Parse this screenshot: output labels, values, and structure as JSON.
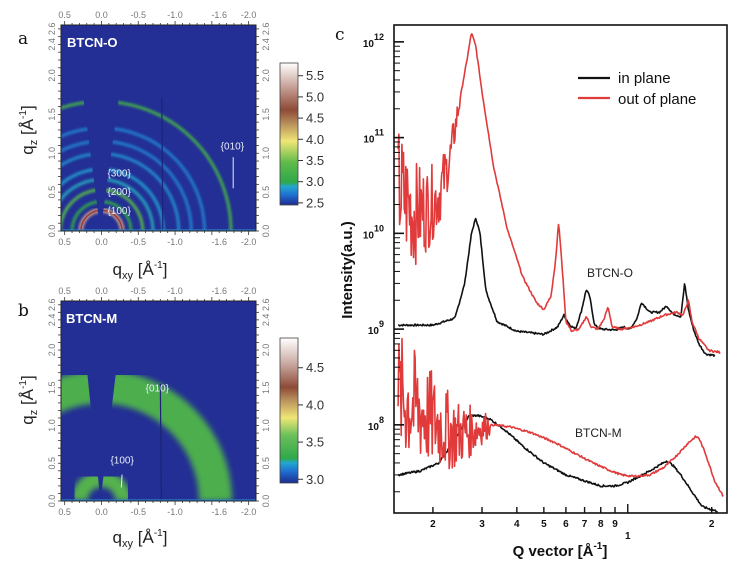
{
  "chart_data": [
    {
      "panel": "a",
      "type": "heatmap",
      "sample_label": "BTCN-O",
      "xlabel": "q_xy [Å^-1]",
      "ylabel": "q_z [Å^-1]",
      "x_ticks": [
        "0.5",
        "0.0",
        "-0.5",
        "-1.0",
        "-1.6",
        "-2.0"
      ],
      "x_tick_values": [
        0.5,
        0.0,
        -0.5,
        -1.0,
        -1.6,
        -2.0
      ],
      "y_ticks": [
        "0.0",
        "0.5",
        "1.0",
        "1.5",
        "2.0",
        "2.4",
        "2.6"
      ],
      "y_tick_values": [
        0.0,
        0.5,
        1.0,
        1.5,
        2.0,
        2.4,
        2.6
      ],
      "xlim": [
        0.55,
        -2.1
      ],
      "ylim": [
        0.0,
        2.65
      ],
      "colorbar": {
        "ticks": [
          "2.5",
          "3.0",
          "3.5",
          "4.0",
          "4.5",
          "5.0",
          "5.5"
        ],
        "range": [
          2.45,
          5.8
        ]
      },
      "reflections": [
        {
          "label": "{100}",
          "q": 0.28
        },
        {
          "label": "{200}",
          "q": 0.56
        },
        {
          "label": "{300}",
          "q": 0.84
        },
        {
          "label": "{010}",
          "q": 1.76
        }
      ],
      "rings": [
        {
          "q": 0.28,
          "intensity": 5.2
        },
        {
          "q": 0.4,
          "intensity": 3.0
        },
        {
          "q": 0.56,
          "intensity": 3.4
        },
        {
          "q": 0.7,
          "intensity": 2.9
        },
        {
          "q": 0.84,
          "intensity": 2.85
        },
        {
          "q": 1.05,
          "intensity": 2.8
        },
        {
          "q": 1.22,
          "intensity": 2.75
        },
        {
          "q": 1.4,
          "intensity": 2.75
        },
        {
          "q": 1.76,
          "intensity": 3.2
        }
      ]
    },
    {
      "panel": "b",
      "type": "heatmap",
      "sample_label": "BTCN-M",
      "xlabel": "q_xy [Å^-1]",
      "ylabel": "q_z [Å^-1]",
      "x_ticks": [
        "0.5",
        "0.0",
        "-0.5",
        "-1.0",
        "-1.6",
        "-2.0"
      ],
      "x_tick_values": [
        0.5,
        0.0,
        -0.5,
        -1.0,
        -1.6,
        -2.0
      ],
      "y_ticks": [
        "0.0",
        "0.5",
        "1.0",
        "1.5",
        "2.0",
        "2.4",
        "2.6"
      ],
      "y_tick_values": [
        0.0,
        0.5,
        1.0,
        1.5,
        2.0,
        2.4,
        2.6
      ],
      "xlim": [
        0.55,
        -2.1
      ],
      "ylim": [
        0.0,
        2.65
      ],
      "colorbar": {
        "ticks": [
          "3.0",
          "3.5",
          "4.0",
          "4.5"
        ],
        "range": [
          2.95,
          4.9
        ]
      },
      "reflections": [
        {
          "label": "{100}",
          "q": 0.3
        },
        {
          "label": "{010}",
          "q": 1.55
        }
      ],
      "rings": [
        {
          "q": 0.3,
          "width": 0.22,
          "intensity": 3.5
        },
        {
          "q": 1.55,
          "width": 0.45,
          "intensity": 3.45
        }
      ]
    },
    {
      "panel": "c",
      "type": "line",
      "xlabel": "Q vector [Å^-1]",
      "ylabel": "Intensity(a.u.)",
      "xscale": "log",
      "yscale": "log",
      "xlim": [
        0.145,
        2.27
      ],
      "ylim": [
        12000000.0,
        1500000000000.0
      ],
      "x_ticks": [
        "2",
        "3",
        "4",
        "5",
        "6",
        "7",
        "8",
        "9",
        "1",
        "2"
      ],
      "x_tick_values": [
        0.2,
        0.3,
        0.4,
        0.5,
        0.6,
        0.7,
        0.8,
        0.9,
        1.0,
        2.0
      ],
      "y_ticks": [
        "10^8",
        "10^9",
        "10^10",
        "10^11",
        "10^12"
      ],
      "y_tick_values": [
        100000000.0,
        1000000000.0,
        10000000000.0,
        100000000000.0,
        1000000000000.0
      ],
      "legend": {
        "position": "top-right",
        "entries": [
          {
            "label": "in plane",
            "color": "#111111"
          },
          {
            "label": "out of plane",
            "color": "#e03a3a"
          }
        ]
      },
      "annotations": [
        {
          "text": "BTCN-O",
          "x": 0.68,
          "y": 4200000000.0
        },
        {
          "text": "BTCN-M",
          "x": 0.66,
          "y": 100000000.0
        }
      ],
      "series": [
        {
          "name": "BTCN-O in plane",
          "color": "#111111",
          "x": [
            0.15,
            0.2,
            0.24,
            0.26,
            0.275,
            0.285,
            0.295,
            0.31,
            0.34,
            0.4,
            0.5,
            0.56,
            0.59,
            0.62,
            0.65,
            0.68,
            0.71,
            0.73,
            0.76,
            0.8,
            0.9,
            0.97,
            1.02,
            1.08,
            1.12,
            1.2,
            1.3,
            1.38,
            1.45,
            1.55,
            1.6,
            1.65,
            1.72,
            1.8,
            1.9,
            2.05
          ],
          "y": [
            1100000000.0,
            1100000000.0,
            1300000000.0,
            3000000000.0,
            10000000000.0,
            14500000000.0,
            10000000000.0,
            2500000000.0,
            1200000000.0,
            950000000.0,
            880000000.0,
            1050000000.0,
            1400000000.0,
            1100000000.0,
            1000000000.0,
            1500000000.0,
            2600000000.0,
            2200000000.0,
            1100000000.0,
            1000000000.0,
            980000000.0,
            1050000000.0,
            1000000000.0,
            1300000000.0,
            1900000000.0,
            1500000000.0,
            1500000000.0,
            1750000000.0,
            1450000000.0,
            1350000000.0,
            3000000000.0,
            1600000000.0,
            1000000000.0,
            700000000.0,
            550000000.0,
            530000000.0
          ]
        },
        {
          "name": "BTCN-O out of plane",
          "color": "#e03a3a",
          "x": [
            0.15,
            0.17,
            0.19,
            0.21,
            0.23,
            0.25,
            0.265,
            0.275,
            0.285,
            0.3,
            0.33,
            0.37,
            0.42,
            0.47,
            0.5,
            0.53,
            0.55,
            0.565,
            0.58,
            0.6,
            0.63,
            0.67,
            0.71,
            0.74,
            0.78,
            0.82,
            0.85,
            0.88,
            0.95,
            1.05,
            1.2,
            1.35,
            1.5,
            1.58,
            1.65,
            1.7,
            1.8,
            1.95,
            2.15
          ],
          "y": [
            30000000000.0,
            16000000000.0,
            18000000000.0,
            25000000000.0,
            60000000000.0,
            250000000000.0,
            650000000000.0,
            1250000000000.0,
            900000000000.0,
            300000000000.0,
            50000000000.0,
            11000000000.0,
            3500000000.0,
            1900000000.0,
            1600000000.0,
            2200000000.0,
            5000000000.0,
            13000000000.0,
            5000000000.0,
            1200000000.0,
            950000000.0,
            1000000000.0,
            1350000000.0,
            1050000000.0,
            1000000000.0,
            1250000000.0,
            1700000000.0,
            1050000000.0,
            1000000000.0,
            1050000000.0,
            1200000000.0,
            1400000000.0,
            1500000000.0,
            1400000000.0,
            2000000000.0,
            1200000000.0,
            800000000.0,
            600000000.0,
            570000000.0
          ]
        },
        {
          "name": "BTCN-M in plane",
          "color": "#111111",
          "x": [
            0.15,
            0.18,
            0.21,
            0.24,
            0.27,
            0.29,
            0.32,
            0.36,
            0.42,
            0.5,
            0.6,
            0.7,
            0.8,
            0.9,
            1.0,
            1.1,
            1.2,
            1.3,
            1.38,
            1.45,
            1.55,
            1.7,
            1.85,
            2.0,
            2.1
          ],
          "y": [
            30000000.0,
            33000000.0,
            40000000.0,
            70000000.0,
            125000000.0,
            125000000.0,
            115000000.0,
            90000000.0,
            60000000.0,
            40000000.0,
            30000000.0,
            26000000.0,
            23000000.0,
            23000000.0,
            25000000.0,
            29000000.0,
            33000000.0,
            38000000.0,
            42000000.0,
            38000000.0,
            30000000.0,
            20000000.0,
            14000000.0,
            13000000.0,
            12500000.0
          ]
        },
        {
          "name": "BTCN-M out of plane",
          "color": "#e03a3a",
          "x": [
            0.15,
            0.18,
            0.21,
            0.24,
            0.27,
            0.3,
            0.33,
            0.38,
            0.45,
            0.55,
            0.65,
            0.75,
            0.85,
            0.95,
            1.05,
            1.2,
            1.35,
            1.5,
            1.65,
            1.75,
            1.8,
            1.9,
            2.05,
            2.2
          ],
          "y": [
            200000000.0,
            140000000.0,
            100000000.0,
            80000000.0,
            85000000.0,
            95000000.0,
            100000000.0,
            95000000.0,
            83000000.0,
            65000000.0,
            50000000.0,
            40000000.0,
            34000000.0,
            30000000.0,
            29000000.0,
            30000000.0,
            36000000.0,
            48000000.0,
            65000000.0,
            75000000.0,
            73000000.0,
            50000000.0,
            26000000.0,
            18000000.0
          ]
        }
      ],
      "noise_regions": [
        {
          "series": "BTCN-O out of plane",
          "x_range": [
            0.15,
            0.25
          ]
        },
        {
          "series": "BTCN-M out of plane",
          "x_range": [
            0.15,
            0.32
          ]
        }
      ]
    }
  ],
  "labels": {
    "panel_a": "a",
    "panel_b": "b",
    "panel_c": "c",
    "sample_a": "BTCN-O",
    "sample_b": "BTCN-M",
    "qxy_main": "q",
    "qxy_sub": "xy",
    "qz_main": "q",
    "qz_sub": "z",
    "unit_open": " [Å",
    "unit_sup": "-1",
    "unit_close": "]",
    "c_xlabel_main": "Q vector [Å",
    "c_xlabel_sup": "-1",
    "c_xlabel_close": "]",
    "c_ylabel": "Intensity(a.u.)",
    "legend_in": "in plane",
    "legend_out": "out of plane",
    "annot_o": "BTCN-O",
    "annot_m": "BTCN-M"
  }
}
